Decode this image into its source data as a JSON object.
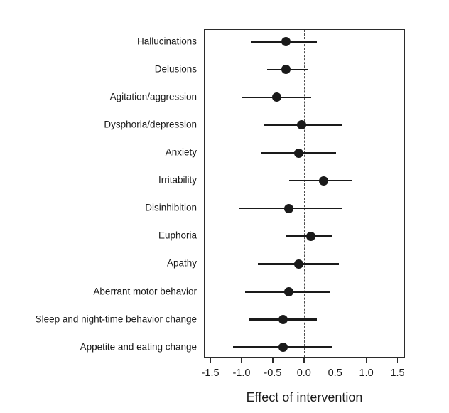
{
  "chart_data": {
    "type": "scatter",
    "subtype": "forest-plot",
    "title": "",
    "xlabel": "Effect of intervention",
    "ylabel": "",
    "grid": false,
    "legend": false,
    "reference_line_x": 0,
    "reference_line_style": "dashed",
    "xlim": [
      -1.603,
      1.619
    ],
    "x_ticks": [
      -1.5,
      -1.0,
      -0.5,
      0.0,
      0.5,
      1.0,
      1.5
    ],
    "x_tick_labels": [
      "-1.5",
      "-1.0",
      "-0.5",
      "0.0",
      "0.5",
      "1.0",
      "1.5"
    ],
    "categories": [
      "Hallucinations",
      "Delusions",
      "Agitation/aggression",
      "Dysphoria/depression",
      "Anxiety",
      "Irritability",
      "Disinhibition",
      "Euphoria",
      "Apathy",
      "Aberrant motor behavior",
      "Sleep and night-time behavior change",
      "Appetite and eating change"
    ],
    "estimates": [
      -0.3,
      -0.3,
      -0.45,
      -0.05,
      -0.1,
      0.3,
      -0.25,
      0.1,
      -0.1,
      -0.25,
      -0.35,
      -0.35
    ],
    "ci_low": [
      -0.85,
      -0.6,
      -1.0,
      -0.65,
      -0.7,
      -0.25,
      -1.05,
      -0.3,
      -0.75,
      -0.95,
      -0.9,
      -1.15
    ],
    "ci_high": [
      0.2,
      0.05,
      0.1,
      0.6,
      0.5,
      0.75,
      0.6,
      0.45,
      0.55,
      0.4,
      0.2,
      0.45
    ],
    "colors": {
      "point": "#1a1a1a",
      "ci_line": "#1a1a1a",
      "reference_line": "#4d4d4d",
      "box_border": "#2b2b2b",
      "background": "#ffffff",
      "text": "#1a1a1a"
    }
  }
}
